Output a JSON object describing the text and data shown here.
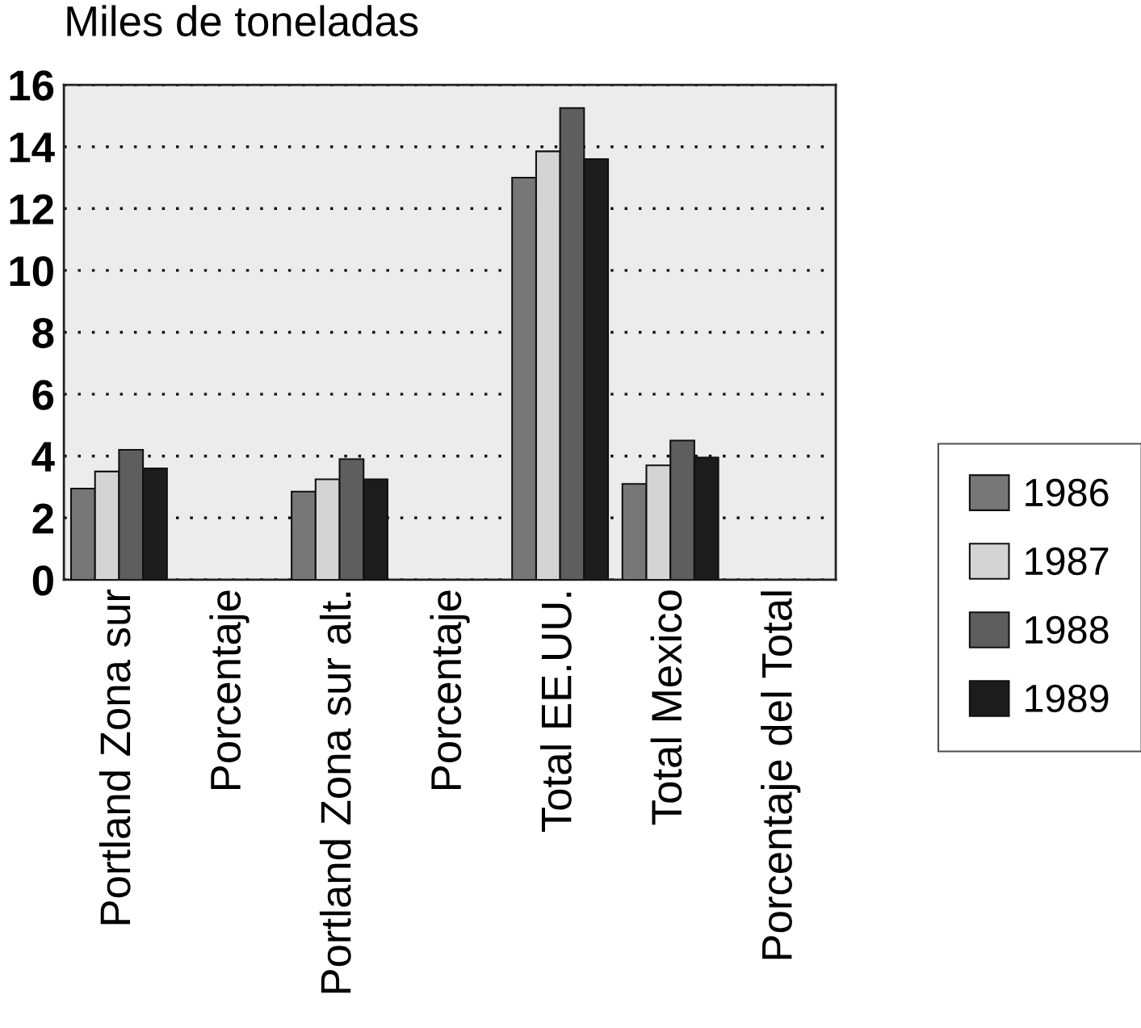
{
  "chart_data": {
    "type": "bar",
    "ylabel": "Miles de toneladas",
    "categories": [
      "Portland Zona sur",
      "Porcentaje",
      "Portland Zona sur alt.",
      "Porcentaje",
      "Total EE.UU.",
      "Total Mexico",
      "Porcentaje del Total"
    ],
    "series": [
      {
        "name": "1986",
        "color": "#777777",
        "values": [
          2.95,
          null,
          2.85,
          null,
          13.0,
          3.1,
          null
        ]
      },
      {
        "name": "1987",
        "color": "#d4d4d4",
        "values": [
          3.5,
          null,
          3.25,
          null,
          13.85,
          3.7,
          null
        ]
      },
      {
        "name": "1988",
        "color": "#5e5e5e",
        "values": [
          4.2,
          null,
          3.9,
          null,
          15.25,
          4.5,
          null
        ]
      },
      {
        "name": "1989",
        "color": "#1c1c1c",
        "values": [
          3.6,
          null,
          3.25,
          null,
          13.6,
          3.95,
          null
        ]
      }
    ],
    "ylim": [
      0,
      16
    ],
    "yticks": [
      0,
      2,
      4,
      6,
      8,
      10,
      12,
      14,
      16
    ],
    "grid": "y",
    "legend": "right"
  }
}
